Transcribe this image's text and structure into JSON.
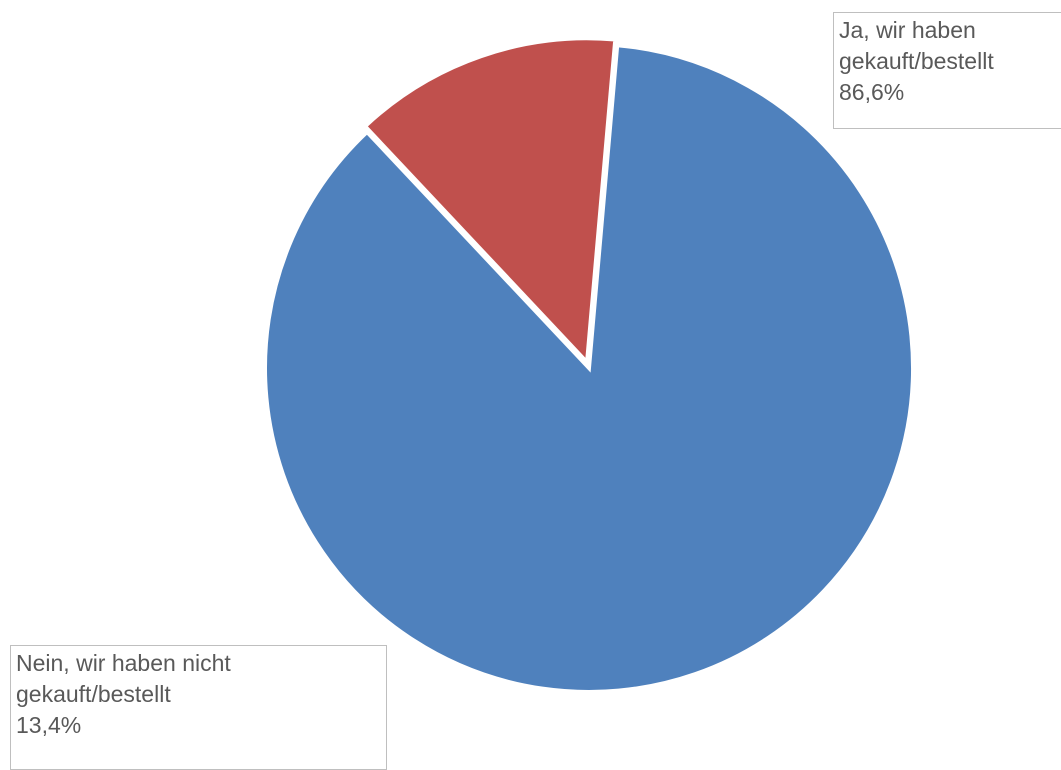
{
  "chart_data": {
    "type": "pie",
    "title": "",
    "slices": [
      {
        "label_lines": [
          "Ja, wir haben",
          "gekauft/bestellt"
        ],
        "value": 86.6,
        "value_label": "86,6%",
        "color": "#4f81bd"
      },
      {
        "label_lines": [
          "Nein, wir haben nicht",
          "gekauft/bestellt"
        ],
        "value": 13.4,
        "value_label": "13,4%",
        "color": "#c0504d"
      }
    ],
    "legend": "none",
    "data_labels": "outside-boxed"
  }
}
